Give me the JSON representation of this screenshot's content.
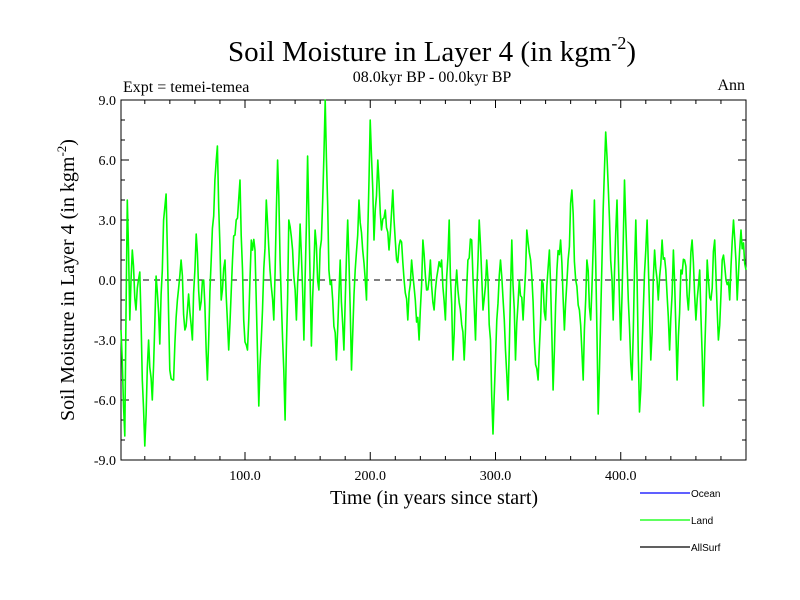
{
  "chart_data": {
    "type": "line",
    "title": "Soil Moisture in Layer 4 (in kgm",
    "title_superscript": "-2",
    "title_suffix": ")",
    "subtitle_left": "Expt = temei-temea",
    "subtitle_center": "08.0kyr BP - 00.0kyr BP",
    "subtitle_right": "Ann",
    "xlabel": "Time (in years since start)",
    "ylabel": "Soil Moisture in Layer 4 (in kgm",
    "ylabel_superscript": "-2",
    "ylabel_suffix": ")",
    "xlim": [
      1,
      500
    ],
    "ylim": [
      -9.0,
      9.0
    ],
    "xticks": [
      100,
      200,
      300,
      400
    ],
    "xtick_labels": [
      "100.0",
      "200.0",
      "300.0",
      "400.0"
    ],
    "yticks": [
      -9,
      -6,
      -3,
      0,
      3,
      6,
      9
    ],
    "ytick_labels": [
      "-9.0",
      "-6.0",
      "-3.0",
      "0.0",
      "3.0",
      "6.0",
      "9.0"
    ],
    "reference_line": 0,
    "legend": [
      {
        "name": "Ocean",
        "color": "#0000ff"
      },
      {
        "name": "Land",
        "color": "#00ff00"
      },
      {
        "name": "AllSurf",
        "color": "#000000"
      }
    ],
    "series": [
      {
        "name": "Land",
        "color": "#00ff00",
        "keypoints": [
          [
            1,
            -2.5
          ],
          [
            4,
            -7.8
          ],
          [
            6,
            4.0
          ],
          [
            8,
            -2.0
          ],
          [
            10,
            1.5
          ],
          [
            13,
            -1.5
          ],
          [
            16,
            0.4
          ],
          [
            18,
            -5.0
          ],
          [
            20,
            -8.3
          ],
          [
            23,
            -3.0
          ],
          [
            26,
            -6.0
          ],
          [
            29,
            0.2
          ],
          [
            32,
            -3.2
          ],
          [
            35,
            3.0
          ],
          [
            37,
            4.3
          ],
          [
            40,
            -4.5
          ],
          [
            43,
            -5.0
          ],
          [
            46,
            -1.0
          ],
          [
            49,
            1.0
          ],
          [
            52,
            -2.5
          ],
          [
            55,
            -0.7
          ],
          [
            58,
            -3.0
          ],
          [
            61,
            2.3
          ],
          [
            64,
            -1.5
          ],
          [
            67,
            0.0
          ],
          [
            70,
            -5.0
          ],
          [
            73,
            1.0
          ],
          [
            76,
            5.0
          ],
          [
            78,
            6.7
          ],
          [
            81,
            -1.0
          ],
          [
            84,
            1.0
          ],
          [
            87,
            -3.5
          ],
          [
            90,
            1.0
          ],
          [
            93,
            3.0
          ],
          [
            96,
            5.0
          ],
          [
            99,
            -2.0
          ],
          [
            102,
            -3.5
          ],
          [
            105,
            2.0
          ],
          [
            108,
            1.5
          ],
          [
            111,
            -6.3
          ],
          [
            114,
            -1.5
          ],
          [
            117,
            4.0
          ],
          [
            120,
            0.5
          ],
          [
            123,
            -2.0
          ],
          [
            126,
            6.0
          ],
          [
            129,
            -1.0
          ],
          [
            132,
            -7.0
          ],
          [
            135,
            3.0
          ],
          [
            138,
            1.5
          ],
          [
            141,
            -2.0
          ],
          [
            144,
            2.8
          ],
          [
            147,
            -3.0
          ],
          [
            150,
            6.2
          ],
          [
            153,
            -3.3
          ],
          [
            156,
            2.5
          ],
          [
            159,
            -0.5
          ],
          [
            162,
            4.0
          ],
          [
            164,
            9.0
          ],
          [
            167,
            0.5
          ],
          [
            170,
            -1.0
          ],
          [
            173,
            -4.0
          ],
          [
            176,
            1.0
          ],
          [
            179,
            -3.5
          ],
          [
            182,
            3.0
          ],
          [
            185,
            -4.5
          ],
          [
            188,
            0.5
          ],
          [
            191,
            4.0
          ],
          [
            194,
            1.5
          ],
          [
            197,
            -1.0
          ],
          [
            200,
            8.0
          ],
          [
            203,
            2.0
          ],
          [
            206,
            6.0
          ],
          [
            209,
            2.5
          ],
          [
            212,
            3.5
          ],
          [
            215,
            1.5
          ],
          [
            218,
            4.5
          ],
          [
            221,
            1.0
          ],
          [
            224,
            2.0
          ],
          [
            227,
            0.0
          ],
          [
            230,
            -2.0
          ],
          [
            233,
            1.0
          ],
          [
            236,
            -1.0
          ],
          [
            239,
            -3.0
          ],
          [
            242,
            2.0
          ],
          [
            245,
            -0.5
          ],
          [
            248,
            1.0
          ],
          [
            251,
            -1.5
          ],
          [
            254,
            0.5
          ],
          [
            257,
            1.0
          ],
          [
            260,
            -2.0
          ],
          [
            263,
            3.0
          ],
          [
            266,
            -4.0
          ],
          [
            269,
            0.5
          ],
          [
            272,
            -1.5
          ],
          [
            275,
            -4.0
          ],
          [
            278,
            1.0
          ],
          [
            281,
            2.0
          ],
          [
            284,
            -3.0
          ],
          [
            287,
            3.0
          ],
          [
            290,
            -1.5
          ],
          [
            293,
            1.0
          ],
          [
            296,
            -3.0
          ],
          [
            298,
            -7.7
          ],
          [
            301,
            -2.0
          ],
          [
            304,
            1.0
          ],
          [
            307,
            -2.0
          ],
          [
            310,
            -6.0
          ],
          [
            313,
            2.0
          ],
          [
            316,
            -4.0
          ],
          [
            319,
            0.0
          ],
          [
            322,
            -2.0
          ],
          [
            325,
            2.5
          ],
          [
            328,
            1.0
          ],
          [
            331,
            -3.0
          ],
          [
            334,
            -5.0
          ],
          [
            337,
            0.0
          ],
          [
            340,
            -2.0
          ],
          [
            343,
            1.5
          ],
          [
            346,
            -5.5
          ],
          [
            349,
            0.5
          ],
          [
            352,
            2.0
          ],
          [
            355,
            -2.5
          ],
          [
            358,
            1.0
          ],
          [
            361,
            4.5
          ],
          [
            364,
            0.0
          ],
          [
            367,
            -1.5
          ],
          [
            370,
            -5.0
          ],
          [
            373,
            1.0
          ],
          [
            376,
            -2.0
          ],
          [
            379,
            4.0
          ],
          [
            382,
            -6.7
          ],
          [
            385,
            1.0
          ],
          [
            388,
            7.4
          ],
          [
            391,
            3.0
          ],
          [
            394,
            -2.0
          ],
          [
            397,
            4.0
          ],
          [
            400,
            -3.0
          ],
          [
            403,
            5.0
          ],
          [
            406,
            -1.0
          ],
          [
            409,
            -5.0
          ],
          [
            412,
            3.0
          ],
          [
            415,
            -6.6
          ],
          [
            418,
            -1.5
          ],
          [
            421,
            3.0
          ],
          [
            424,
            -4.0
          ],
          [
            427,
            1.5
          ],
          [
            430,
            -1.0
          ],
          [
            433,
            2.0
          ],
          [
            436,
            0.5
          ],
          [
            439,
            -3.5
          ],
          [
            442,
            1.5
          ],
          [
            445,
            -5.0
          ],
          [
            448,
            0.5
          ],
          [
            451,
            1.0
          ],
          [
            454,
            -1.5
          ],
          [
            457,
            2.0
          ],
          [
            460,
            -2.0
          ],
          [
            463,
            0.5
          ],
          [
            466,
            -6.3
          ],
          [
            469,
            1.0
          ],
          [
            472,
            -1.0
          ],
          [
            475,
            2.0
          ],
          [
            478,
            -3.0
          ],
          [
            481,
            1.0
          ],
          [
            484,
            0.0
          ],
          [
            487,
            -1.0
          ],
          [
            490,
            3.0
          ],
          [
            493,
            -1.0
          ],
          [
            496,
            2.5
          ],
          [
            500,
            0.5
          ]
        ]
      }
    ]
  }
}
